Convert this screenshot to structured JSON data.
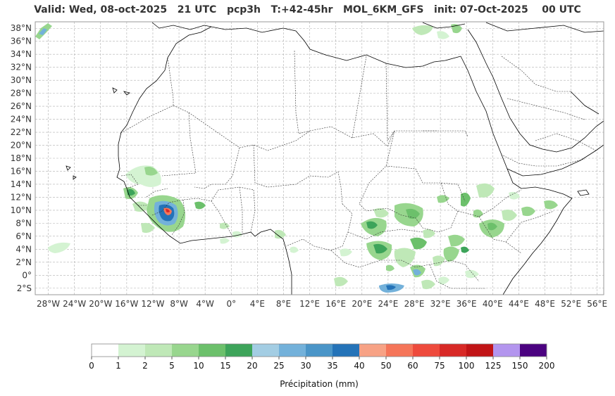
{
  "title": "Valid: Wed, 08-oct-2025   21 UTC   pcp3h   T:+42-45hr   MOL_6KM_GFS   init: 07-Oct-2025    00 UTC",
  "lat_labels": [
    "38°N",
    "36°N",
    "34°N",
    "32°N",
    "30°N",
    "28°N",
    "26°N",
    "24°N",
    "22°N",
    "20°N",
    "18°N",
    "16°N",
    "14°N",
    "12°N",
    "10°N",
    "8°N",
    "6°N",
    "4°N",
    "2°N",
    "0°",
    "2°S"
  ],
  "lon_labels": [
    "28°W",
    "24°W",
    "20°W",
    "16°W",
    "12°W",
    "8°W",
    "4°W",
    "0°",
    "4°E",
    "8°E",
    "12°E",
    "16°E",
    "20°E",
    "24°E",
    "28°E",
    "32°E",
    "36°E",
    "40°E",
    "44°E",
    "48°E",
    "52°E",
    "56°E"
  ],
  "colorbar": {
    "label": "Précipitation (mm)",
    "ticks": [
      "0",
      "1",
      "2",
      "5",
      "10",
      "15",
      "20",
      "25",
      "30",
      "35",
      "40",
      "50",
      "60",
      "75",
      "100",
      "125",
      "150",
      "200"
    ],
    "colors": [
      "#ffffff",
      "#d4f3d2",
      "#bfe8b7",
      "#98d68e",
      "#6cc06b",
      "#3da45a",
      "#a3cde3",
      "#73b1da",
      "#4a95c8",
      "#2473b8",
      "#f7a285",
      "#f57559",
      "#ee4a3c",
      "#d82926",
      "#c11416",
      "#b395ee",
      "#4b0280"
    ]
  },
  "map_extent": {
    "lon": [
      -30,
      57
    ],
    "lat": [
      -3,
      39
    ]
  },
  "colors": {
    "grid": "#b0b0b0",
    "coast": "#000000",
    "border": "#333333"
  }
}
